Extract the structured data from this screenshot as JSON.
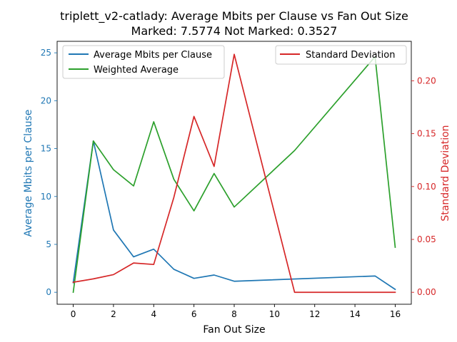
{
  "chart_data": {
    "type": "line",
    "title_line1": "triplett_v2-catlady: Average Mbits per Clause vs Fan Out Size",
    "title_line2": "Marked: 7.5774 Not Marked: 0.3527",
    "xlabel": "Fan Out Size",
    "ylabel_left": "Average Mbits per Clause",
    "ylabel_right": "Standard Deviation",
    "xlim": [
      -0.8,
      16.8
    ],
    "ylim_left": [
      -1.25,
      26.2
    ],
    "ylim_right": [
      -0.0113,
      0.2373
    ],
    "x_ticks": [
      0,
      2,
      4,
      6,
      8,
      10,
      12,
      14,
      16
    ],
    "y_ticks_left": [
      0,
      5,
      10,
      15,
      20,
      25
    ],
    "y_ticks_right": [
      0.0,
      0.05,
      0.1,
      0.15,
      0.2
    ],
    "y_tick_labels_right": [
      "0.00",
      "0.05",
      "0.10",
      "0.15",
      "0.20"
    ],
    "legend_left_placement": "upper-left",
    "legend_right_placement": "upper-right",
    "series": [
      {
        "name": "Average Mbits per Clause",
        "axis": "left",
        "color": "#1f77b4",
        "x": [
          0,
          1,
          2,
          3,
          4,
          5,
          6,
          7,
          8,
          15,
          16
        ],
        "y": [
          1.0,
          15.8,
          6.5,
          3.7,
          4.5,
          2.4,
          1.45,
          1.8,
          1.15,
          1.7,
          0.3
        ]
      },
      {
        "name": "Weighted Average",
        "axis": "left",
        "color": "#2ca02c",
        "x": [
          0,
          1,
          2,
          3,
          4,
          5,
          6,
          7,
          8,
          11,
          15,
          16
        ],
        "y": [
          0.0,
          15.8,
          12.8,
          11.1,
          17.8,
          11.8,
          8.5,
          12.4,
          8.9,
          14.8,
          24.6,
          4.7
        ]
      },
      {
        "name": "Standard Deviation",
        "axis": "right",
        "color": "#d62728",
        "x": [
          0,
          1,
          2,
          3,
          4,
          5,
          6,
          7,
          8,
          11,
          15,
          16
        ],
        "y": [
          0.0095,
          0.0127,
          0.0167,
          0.0277,
          0.0263,
          0.0897,
          0.1663,
          0.119,
          0.225,
          0.0,
          0.0,
          0.0
        ]
      }
    ]
  }
}
